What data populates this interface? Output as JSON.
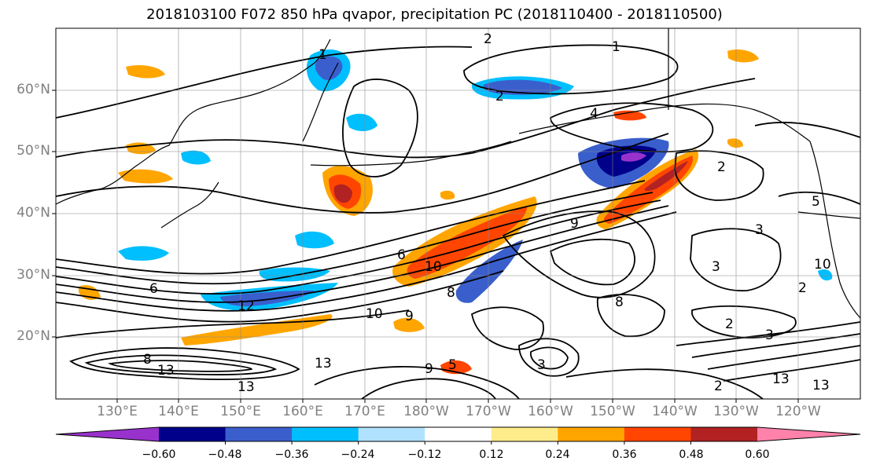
{
  "title": "2018103100 F072 850 hPa qvapor, precipitation PC (2018110400 - 2018110500)",
  "lat_labels": [
    "60°N",
    "50°N",
    "40°N",
    "30°N",
    "20°N"
  ],
  "lon_labels": [
    "130°E",
    "140°E",
    "150°E",
    "160°E",
    "170°E",
    "180°W",
    "170°W",
    "160°W",
    "150°W",
    "140°W",
    "130°W",
    "120°W"
  ],
  "colorbar": {
    "ticks": [
      "−0.60",
      "−0.48",
      "−0.36",
      "−0.24",
      "−0.12",
      "0.12",
      "0.24",
      "0.36",
      "0.48",
      "0.60"
    ],
    "colors": [
      "#9932cc",
      "#00008b",
      "#3a5fcd",
      "#00bfff",
      "#b0e2ff",
      "#ffffff",
      "#ffec8b",
      "#ffa500",
      "#ff4500",
      "#b22222",
      "#ff82ab"
    ]
  },
  "contour_labels": [
    "1",
    "2",
    "1",
    "2",
    "4",
    "2",
    "5",
    "3",
    "3",
    "2",
    "6",
    "10",
    "12",
    "10",
    "9",
    "8",
    "9",
    "13",
    "13",
    "13",
    "13",
    "8",
    "9",
    "6",
    "2",
    "3",
    "2",
    "13",
    "10",
    "8",
    "3",
    "5"
  ]
}
